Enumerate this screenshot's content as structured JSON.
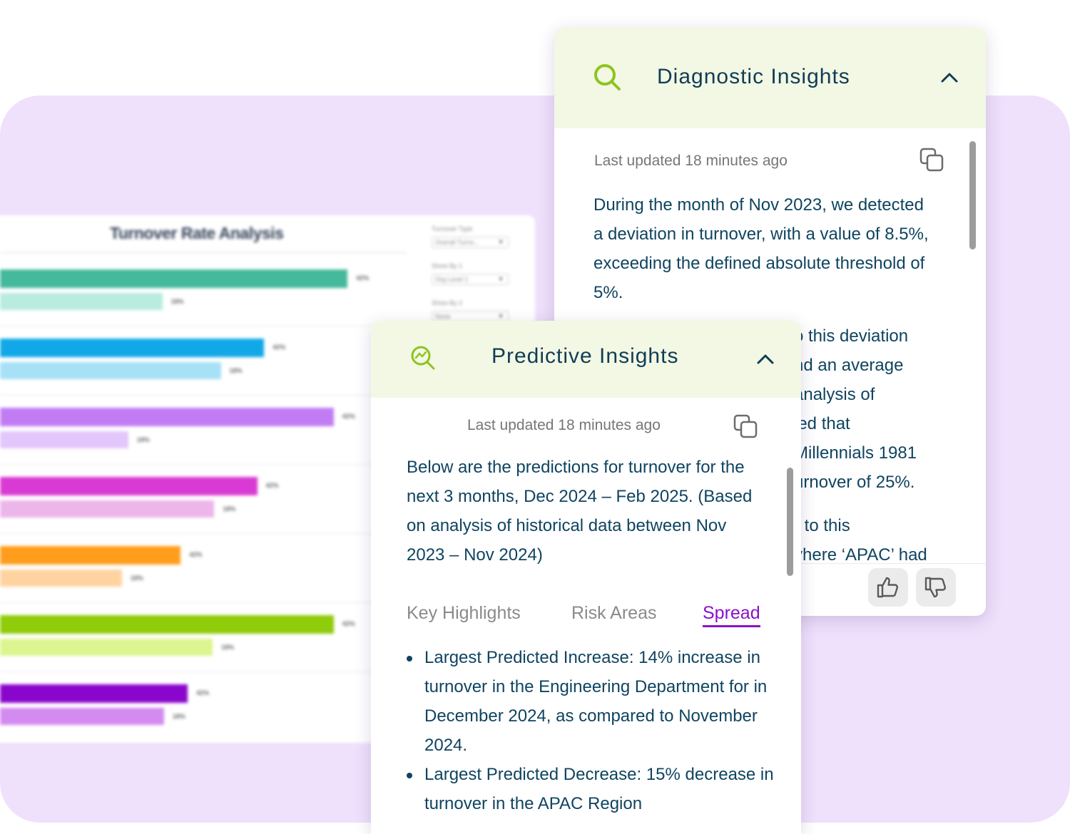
{
  "chart": {
    "title": "Turnover Rate Analysis",
    "controls": [
      {
        "label": "Turnover Type",
        "value": "Overall Turno..."
      },
      {
        "label": "Show By 1",
        "value": "Org Level 1"
      },
      {
        "label": "Show By 2",
        "value": "None"
      }
    ]
  },
  "chart_data": {
    "type": "bar",
    "orientation": "horizontal",
    "title": "Turnover Rate Analysis",
    "series": [
      {
        "name": "primary",
        "values": [
          42,
          42,
          42,
          42,
          42,
          42,
          42
        ],
        "labels": [
          "42%",
          "42%",
          "42%",
          "42%",
          "42%",
          "42%",
          "42%"
        ]
      },
      {
        "name": "secondary",
        "values": [
          18,
          18,
          18,
          18,
          18,
          18,
          18
        ],
        "labels": [
          "18%",
          "18%",
          "18%",
          "18%",
          "18%",
          "18%",
          "18%"
        ]
      }
    ],
    "colors": [
      [
        "#45b99b",
        "#b9ebde"
      ],
      [
        "#10a8e6",
        "#a6e1f6"
      ],
      [
        "#c17cf4",
        "#e3c6fb"
      ],
      [
        "#d93ad3",
        "#ecb6ea"
      ],
      [
        "#ff9d1c",
        "#ffd3a0"
      ],
      [
        "#8fcc0a",
        "#dcf58e"
      ],
      [
        "#8b06cc",
        "#d38bf1"
      ]
    ]
  },
  "diagnostic": {
    "title": "Diagnostic Insights",
    "updated": "Last updated 18 minutes ago",
    "para1": "During the month of Nov 2023, we detected a deviation in turnover, with a value of 8.5%, exceeding the defined absolute threshold of 5%.",
    "para2_fragments": [
      "o this deviation",
      "nd an average",
      "analysis of",
      "led that",
      "Millennials 1981",
      "urnover of 25%."
    ],
    "para3_fragments": [
      "r to this",
      "vhere ‘APAC’ had"
    ],
    "icons": {
      "search": "search-icon",
      "copy": "copy-icon",
      "up": "thumbs-up-icon",
      "down": "thumbs-down-icon",
      "collapse": "chevron-up-icon"
    }
  },
  "predictive": {
    "title": "Predictive Insights",
    "updated": "Last updated 18 minutes ago",
    "intro": "Below are the predictions for turnover for the next 3 months, Dec 2024 – Feb 2025. (Based on analysis of historical data between Nov 2023 – Nov 2024)",
    "tabs": [
      "Key Highlights",
      "Risk Areas",
      "Spread"
    ],
    "active_tab": "Spread",
    "bullets": [
      "Largest Predicted Increase: 14% increase in turnover in the Engineering Department for in December 2024, as compared to November 2024.",
      "Largest Predicted Decrease: 15% decrease in turnover in the APAC Region"
    ],
    "icons": {
      "analytics": "analytics-search-icon",
      "copy": "copy-icon",
      "collapse": "chevron-up-icon"
    }
  },
  "colors": {
    "background_panel": "#efe0fc",
    "card_header": "#f2f8e4",
    "title_text": "#123c55",
    "accent_green": "#8fc31f",
    "active_tab": "#8a12c8"
  }
}
